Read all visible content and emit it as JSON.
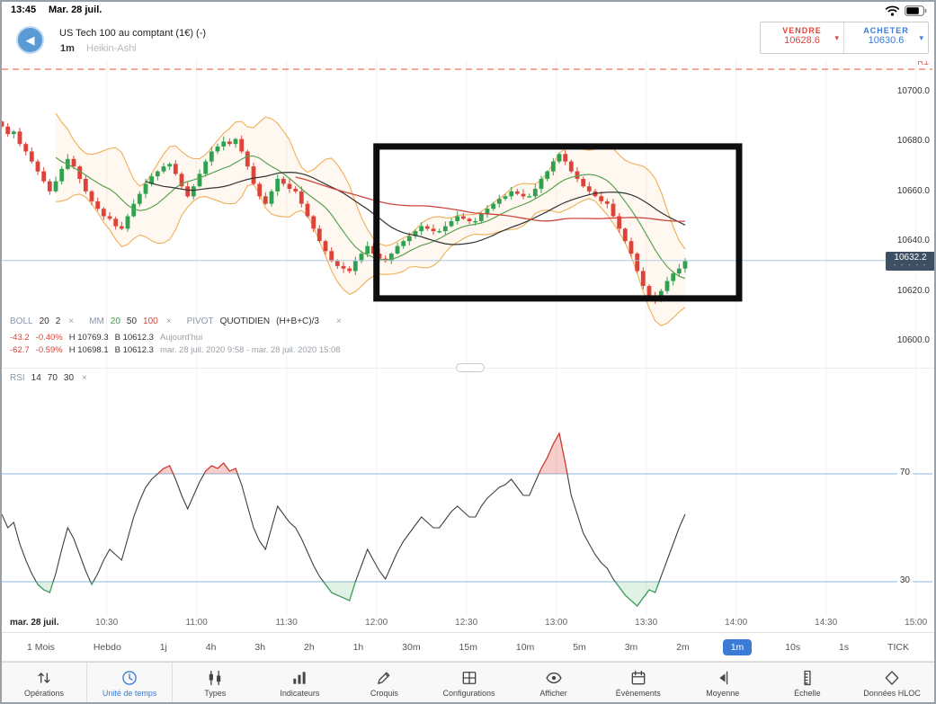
{
  "status_bar": {
    "time": "13:45",
    "date": "Mar. 28 juil."
  },
  "header": {
    "title": "US Tech 100 au comptant (1€) (-)",
    "timeframe": "1m",
    "chart_style": "Heikin-Ashi",
    "sell": {
      "label": "VENDRE",
      "price": "10628.6"
    },
    "buy": {
      "label": "ACHETER",
      "price": "10630.6"
    }
  },
  "pivot": {
    "label": "R1"
  },
  "price_axis": {
    "current": "10632.2"
  },
  "indicators": {
    "boll": {
      "name": "BOLL",
      "p1": "20",
      "p2": "2"
    },
    "mm": {
      "name": "MM",
      "p1": "20",
      "p2": "50",
      "p3": "100"
    },
    "pivot_row": {
      "name": "PIVOT",
      "type": "QUOTIDIEN",
      "formula": "(H+B+C)/3"
    },
    "stats": [
      {
        "chg": "-43.2",
        "pct": "-0.40%",
        "high": "H 10769.3",
        "low": "B 10612.3",
        "period": "Aujourd'hui"
      },
      {
        "chg": "-62.7",
        "pct": "-0.59%",
        "high": "H 10698.1",
        "low": "B 10612.3",
        "period": "mar. 28 juil. 2020 9:58 - mar. 28 juil. 2020 15:08"
      }
    ],
    "rsi": {
      "name": "RSI",
      "p1": "14",
      "p2": "70",
      "p3": "30"
    }
  },
  "time_axis": {
    "first": "mar. 28 juil.",
    "labels": [
      "10:30",
      "11:00",
      "11:30",
      "12:00",
      "12:30",
      "13:00",
      "13:30",
      "14:00",
      "14:30",
      "15:00"
    ]
  },
  "timeframes": {
    "items": [
      "1 Mois",
      "Hebdo",
      "1j",
      "4h",
      "3h",
      "2h",
      "1h",
      "30m",
      "15m",
      "10m",
      "5m",
      "3m",
      "2m",
      "1m",
      "10s",
      "1s",
      "TICK"
    ],
    "selected": "1m"
  },
  "toolbar": {
    "selected": "Unité de temps",
    "items": [
      {
        "label": "Opérations"
      },
      {
        "label": "Unité de temps"
      },
      {
        "label": "Types"
      },
      {
        "label": "Indicateurs"
      },
      {
        "label": "Croquis"
      },
      {
        "label": "Configurations"
      },
      {
        "label": "Afficher"
      },
      {
        "label": "Évènements"
      },
      {
        "label": "Moyenne"
      },
      {
        "label": "Échelle"
      },
      {
        "label": "Données HLOC"
      }
    ]
  },
  "colors": {
    "accent_blue": "#3a7bd5",
    "sell_red": "#e04438",
    "buy_blue": "#3a7bd5",
    "candle_up": "#2fa14f",
    "candle_down": "#de4339",
    "bollinger_orange": "#efae57",
    "ma20_green": "#5aa352",
    "ma50_black": "#333333",
    "ma100_red": "#d0453c",
    "pivot_dash_red": "#ef8b80",
    "rsi_level_blue": "#8fb7da",
    "badge_navy": "#3e4e63"
  },
  "chart_data": [
    {
      "type": "candlestick-heikin-ashi",
      "title": "US Tech 100 au comptant, 1m",
      "start_time": "09:55",
      "interval_minutes": 2,
      "ylim": [
        10595,
        10715
      ],
      "y_ticks": [
        10700,
        10680,
        10660,
        10640,
        10620,
        10600
      ],
      "current_price": 10632.2,
      "pivot_r1_y": 75,
      "overlays": [
        "BOLL(20,2)",
        "MM(20)",
        "MM(50)",
        "MM(100)",
        "PIVOT QUOTIDIEN (H+B+C)/3"
      ],
      "annotation_rect": {
        "t1": "12:00",
        "t2": "14:01",
        "p1": 10678,
        "p2": 10617
      },
      "closes": [
        10686,
        10683,
        10684,
        10679,
        10676,
        10672,
        10668,
        10664,
        10660,
        10664,
        10669,
        10673,
        10670,
        10665,
        10660,
        10656,
        10653,
        10650,
        10649,
        10646,
        10645,
        10650,
        10655,
        10659,
        10663,
        10666,
        10668,
        10670,
        10671,
        10667,
        10662,
        10658,
        10662,
        10667,
        10672,
        10676,
        10678,
        10680,
        10679,
        10681,
        10676,
        10670,
        10663,
        10658,
        10655,
        10660,
        10665,
        10663,
        10661,
        10660,
        10655,
        10650,
        10645,
        10640,
        10636,
        10632,
        10630,
        10629,
        10628,
        10632,
        10635,
        10638,
        10635,
        10633,
        10632,
        10635,
        10638,
        10640,
        10642,
        10644,
        10646,
        10645,
        10644,
        10644,
        10646,
        10648,
        10650,
        10649,
        10648,
        10648,
        10651,
        10653,
        10655,
        10657,
        10658,
        10660,
        10659,
        10658,
        10658,
        10661,
        10665,
        10668,
        10672,
        10675,
        10672,
        10668,
        10665,
        10662,
        10660,
        10658,
        10656,
        10655,
        10650,
        10645,
        10640,
        10635,
        10628,
        10622,
        10618,
        10616,
        10620,
        10624,
        10627,
        10629,
        10632
      ]
    },
    {
      "type": "line",
      "title": "RSI 14",
      "levels": [
        70,
        30
      ],
      "ylim": [
        0,
        100
      ],
      "values": [
        55,
        50,
        52,
        44,
        38,
        33,
        29,
        27,
        26,
        33,
        42,
        50,
        46,
        40,
        34,
        29,
        33,
        38,
        42,
        40,
        38,
        46,
        54,
        60,
        65,
        68,
        70,
        72,
        73,
        68,
        62,
        57,
        62,
        67,
        71,
        73,
        72,
        74,
        71,
        72,
        66,
        58,
        50,
        45,
        42,
        50,
        58,
        55,
        52,
        50,
        46,
        41,
        36,
        32,
        29,
        26,
        25,
        24,
        23,
        30,
        36,
        42,
        38,
        34,
        31,
        36,
        41,
        45,
        48,
        51,
        54,
        52,
        50,
        50,
        53,
        56,
        58,
        56,
        54,
        54,
        58,
        61,
        63,
        65,
        66,
        68,
        65,
        62,
        62,
        67,
        72,
        76,
        81,
        85,
        74,
        62,
        55,
        48,
        44,
        40,
        37,
        35,
        31,
        28,
        25,
        23,
        21,
        24,
        27,
        26,
        32,
        38,
        44,
        50,
        55
      ]
    }
  ]
}
